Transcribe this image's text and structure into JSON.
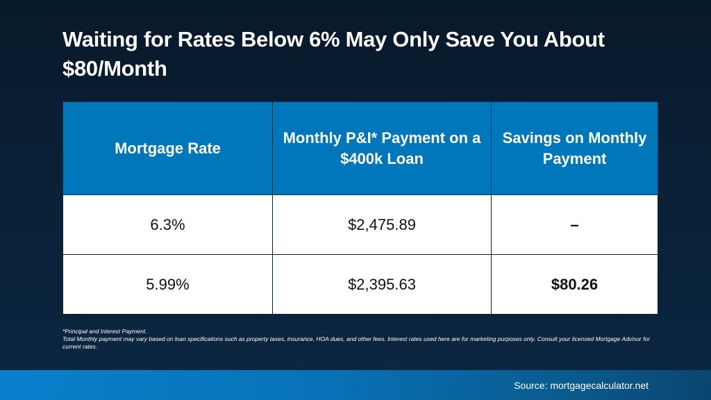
{
  "title": "Waiting for Rates Below 6% May Only Save You About $80/Month",
  "table": {
    "headers": [
      "Mortgage Rate",
      "Monthly P&I* Payment on a $400k Loan",
      "Savings on Monthly Payment"
    ],
    "rows": [
      [
        "6.3%",
        "$2,475.89",
        "–"
      ],
      [
        "5.99%",
        "$2,395.63",
        "$80.26"
      ]
    ]
  },
  "notes": {
    "line1": "*Principal and Interest Payment.",
    "line2": "Total Monthly payment may vary based on loan specifications such as property taxes, insurance, HOA dues, and other fees. Interest rates used here are for marketing purposes only. Consult your licensed Mortgage Advisor for current rates."
  },
  "source": "Source: mortgagecalculator.net",
  "colors": {
    "header": "#0077bb",
    "background": "#0a2036",
    "footer": "#0a80cc"
  }
}
